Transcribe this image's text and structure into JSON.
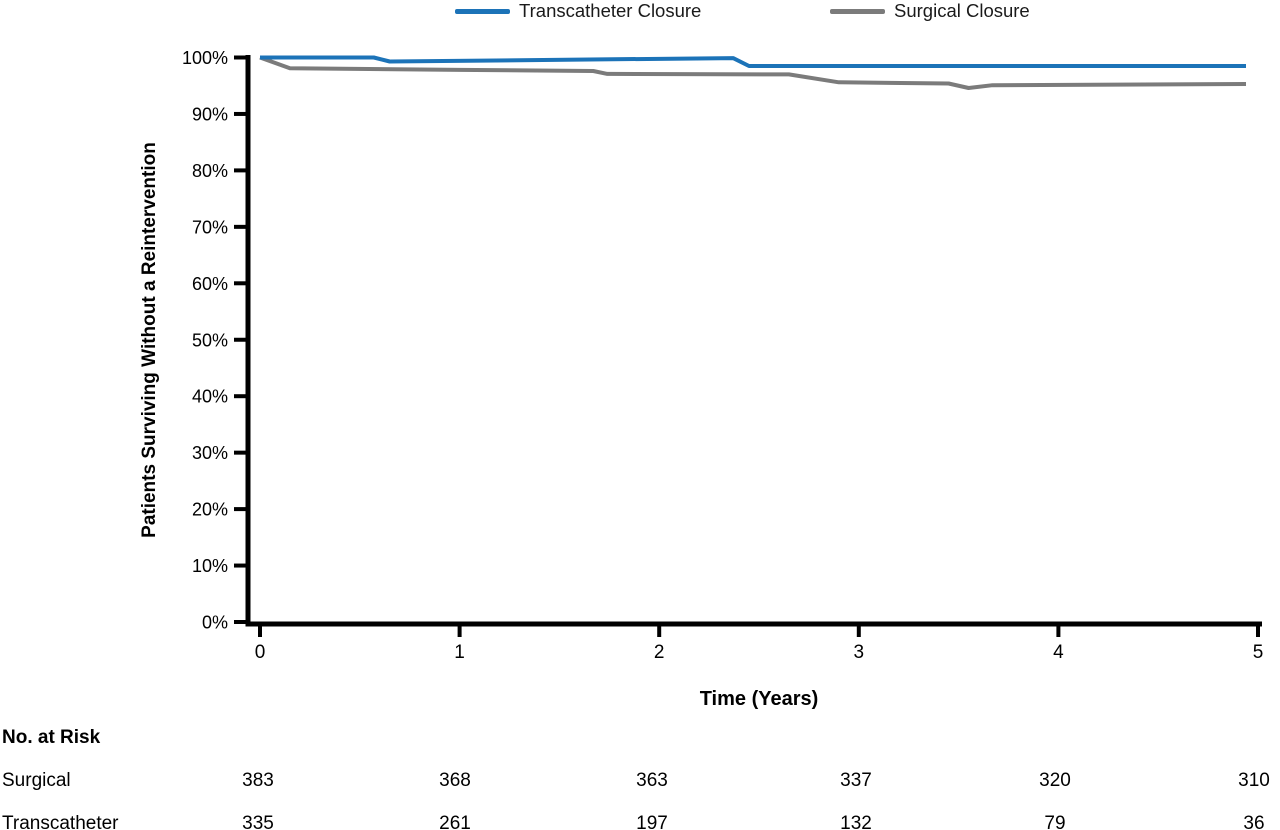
{
  "figure": {
    "type_note": "Kaplan-Meier style survival figure"
  },
  "legend": {
    "items": [
      {
        "label": "Transcatheter Closure",
        "color": "#1c73b8"
      },
      {
        "label": "Surgical Closure",
        "color": "#7b7b7b"
      }
    ]
  },
  "chart_data": {
    "type": "line",
    "title": "",
    "xlabel": "Time (Years)",
    "ylabel": "Patients Surviving Without a Reintervention",
    "xlim": [
      0,
      5
    ],
    "ylim": [
      0,
      100
    ],
    "grid": false,
    "legend_position": "top",
    "x_ticks": [
      0,
      1,
      2,
      3,
      4,
      5
    ],
    "y_tick_values": [
      0,
      10,
      20,
      30,
      40,
      50,
      60,
      70,
      80,
      90,
      100
    ],
    "y_tick_labels": [
      "0%",
      "10%",
      "20%",
      "30%",
      "40%",
      "50%",
      "60%",
      "70%",
      "80%",
      "90%",
      "100%"
    ],
    "series": [
      {
        "name": "Transcatheter Closure",
        "color": "#1c73b8",
        "x": [
          0,
          0.57,
          0.65,
          2.37,
          2.45,
          4.94
        ],
        "y": [
          100,
          100,
          99.3,
          99.9,
          98.5,
          98.5
        ]
      },
      {
        "name": "Surgical Closure",
        "color": "#7b7b7b",
        "x": [
          0,
          0.15,
          1.0,
          1.67,
          1.74,
          2.65,
          2.9,
          3.45,
          3.55,
          3.67,
          4.94
        ],
        "y": [
          100,
          98.1,
          97.8,
          97.6,
          97.1,
          97.0,
          95.6,
          95.4,
          94.6,
          95.1,
          95.3
        ]
      }
    ]
  },
  "risk_table": {
    "title": "No. at Risk",
    "rows": [
      {
        "label": "Surgical",
        "values": [
          "383",
          "368",
          "363",
          "337",
          "320",
          "310"
        ]
      },
      {
        "label": "Transcatheter",
        "values": [
          "335",
          "261",
          "197",
          "132",
          "79",
          "36"
        ]
      }
    ]
  }
}
